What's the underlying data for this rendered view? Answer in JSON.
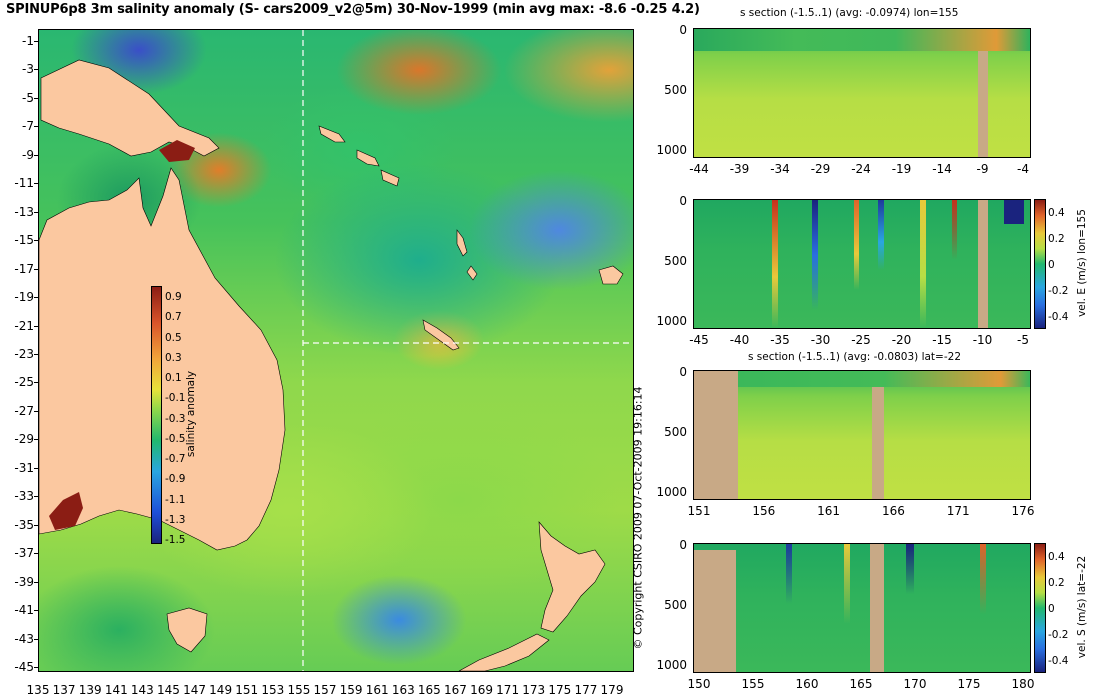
{
  "title": "SPINUP6p8 3m salinity anomaly (S- cars2009_v2@5m) 30-Nov-1999 (min avg max: -8.6 -0.25 4.2)",
  "map": {
    "y_ticks": [
      "-1",
      "-3",
      "-5",
      "-7",
      "-9",
      "-11",
      "-13",
      "-15",
      "-17",
      "-19",
      "-21",
      "-23",
      "-25",
      "-27",
      "-29",
      "-31",
      "-33",
      "-35",
      "-37",
      "-39",
      "-41",
      "-43",
      "-45"
    ],
    "x_ticks": [
      "135",
      "137",
      "139",
      "141",
      "143",
      "145",
      "147",
      "149",
      "151",
      "153",
      "155",
      "157",
      "159",
      "161",
      "163",
      "165",
      "167",
      "169",
      "171",
      "173",
      "175",
      "177",
      "179"
    ],
    "colorbar": {
      "label": "salinity anomaly",
      "ticks": [
        "0.9",
        "0.7",
        "0.5",
        "0.3",
        "0.1",
        "-0.1",
        "-0.3",
        "-0.5",
        "-0.7",
        "-0.9",
        "-1.1",
        "-1.3",
        "-1.5"
      ]
    },
    "section_lines": {
      "lon": 155,
      "lat": -22
    },
    "colors": {
      "land": "#fbc8a0",
      "section_line": "#ffffff"
    }
  },
  "copyright": "© Copyright CSIRO 2009   07-Oct-2009 19:16:14",
  "panels": [
    {
      "id": "s-section-lon",
      "title": "s section (-1.5..1) (avg: -0.0974) lon=155",
      "y_ticks": [
        "0",
        "500",
        "1000"
      ],
      "x_ticks": [
        "-44",
        "-39",
        "-34",
        "-29",
        "-24",
        "-19",
        "-14",
        "-9",
        "-4"
      ]
    },
    {
      "id": "vel-e-lon",
      "title": "",
      "y_ticks": [
        "0",
        "500",
        "1000"
      ],
      "x_ticks": [
        "-45",
        "-40",
        "-35",
        "-30",
        "-25",
        "-20",
        "-15",
        "-10",
        "-5"
      ],
      "colorbar": {
        "label": "vel. E (m/s) lon=155",
        "ticks": [
          "0.4",
          "0.2",
          "0",
          "-0.2",
          "-0.4"
        ]
      }
    },
    {
      "id": "s-section-lat",
      "title": "s section (-1.5..1) (avg: -0.0803) lat=-22",
      "y_ticks": [
        "0",
        "500",
        "1000"
      ],
      "x_ticks": [
        "151",
        "156",
        "161",
        "166",
        "171",
        "176"
      ]
    },
    {
      "id": "vel-s-lat",
      "title": "",
      "y_ticks": [
        "0",
        "500",
        "1000"
      ],
      "x_ticks": [
        "150",
        "155",
        "160",
        "165",
        "170",
        "175",
        "180"
      ],
      "colorbar": {
        "label": "vel. S (m/s) lat=-22",
        "ticks": [
          "0.4",
          "0.2",
          "0",
          "-0.2",
          "-0.4"
        ]
      }
    }
  ]
}
